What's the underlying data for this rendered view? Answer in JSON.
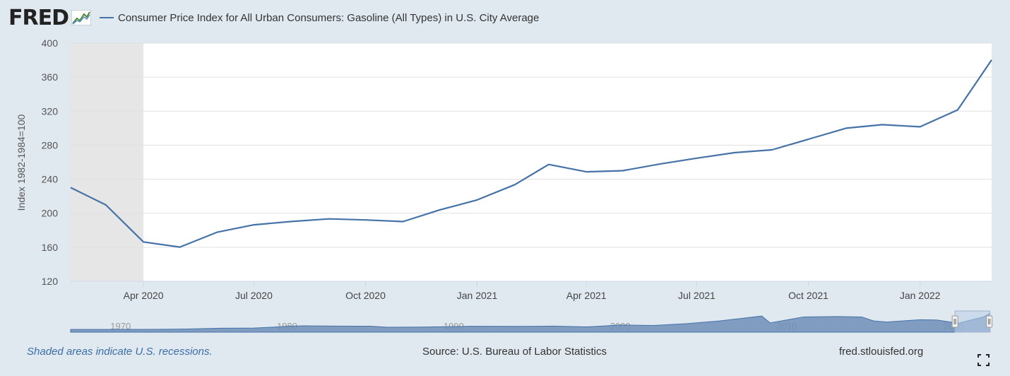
{
  "header": {
    "logo": "FRED",
    "series_label": "Consumer Price Index for All Urban Consumers: Gasoline (All Types) in U.S. City Average",
    "series_color": "#4572a7"
  },
  "chart_data": {
    "type": "line",
    "title": "",
    "xlabel": "",
    "ylabel": "Index 1982-1984=100",
    "ylim": [
      120,
      400
    ],
    "yticks": [
      120,
      160,
      200,
      240,
      280,
      320,
      360,
      400
    ],
    "xlim": [
      "2020-02-01",
      "2022-03-01"
    ],
    "xticks": [
      {
        "date": "2020-04-01",
        "label": "Apr 2020"
      },
      {
        "date": "2020-07-01",
        "label": "Jul 2020"
      },
      {
        "date": "2020-10-01",
        "label": "Oct 2020"
      },
      {
        "date": "2021-01-01",
        "label": "Jan 2021"
      },
      {
        "date": "2021-04-01",
        "label": "Apr 2021"
      },
      {
        "date": "2021-07-01",
        "label": "Jul 2021"
      },
      {
        "date": "2021-10-01",
        "label": "Oct 2021"
      },
      {
        "date": "2022-01-01",
        "label": "Jan 2022"
      }
    ],
    "grid": true,
    "recession_shading": {
      "start": "2020-02-01",
      "end": "2020-04-01",
      "color": "#e6e6e6"
    },
    "series": [
      {
        "color": "#4572a7",
        "points": [
          {
            "x": "2020-02-01",
            "y": 230.2
          },
          {
            "x": "2020-03-01",
            "y": 209.8
          },
          {
            "x": "2020-04-01",
            "y": 166.3
          },
          {
            "x": "2020-05-01",
            "y": 160.2
          },
          {
            "x": "2020-06-01",
            "y": 177.8
          },
          {
            "x": "2020-07-01",
            "y": 186.4
          },
          {
            "x": "2020-08-01",
            "y": 190.3
          },
          {
            "x": "2020-09-01",
            "y": 193.4
          },
          {
            "x": "2020-10-01",
            "y": 192.1
          },
          {
            "x": "2020-11-01",
            "y": 190.2
          },
          {
            "x": "2020-12-01",
            "y": 203.8
          },
          {
            "x": "2021-01-01",
            "y": 215.6
          },
          {
            "x": "2021-02-01",
            "y": 233.6
          },
          {
            "x": "2021-03-01",
            "y": 257.3
          },
          {
            "x": "2021-04-01",
            "y": 248.7
          },
          {
            "x": "2021-05-01",
            "y": 250.0
          },
          {
            "x": "2021-06-01",
            "y": 258.0
          },
          {
            "x": "2021-07-01",
            "y": 264.7
          },
          {
            "x": "2021-08-01",
            "y": 271.2
          },
          {
            "x": "2021-09-01",
            "y": 274.5
          },
          {
            "x": "2021-10-01",
            "y": 287.0
          },
          {
            "x": "2021-11-01",
            "y": 300.0
          },
          {
            "x": "2021-12-01",
            "y": 304.1
          },
          {
            "x": "2022-01-01",
            "y": 301.6
          },
          {
            "x": "2022-02-01",
            "y": 321.5
          },
          {
            "x": "2022-03-01",
            "y": 380.2
          }
        ]
      }
    ],
    "navigator": {
      "year_labels": [
        "1970",
        "1980",
        "1990",
        "2000",
        "2010",
        "2020"
      ],
      "range": [
        1967,
        2022.3
      ],
      "window": [
        2020.1,
        2022.2
      ],
      "overview_values": [
        {
          "x": 1967,
          "y": 30
        },
        {
          "x": 1972,
          "y": 31
        },
        {
          "x": 1974,
          "y": 39
        },
        {
          "x": 1976,
          "y": 55
        },
        {
          "x": 1978,
          "y": 60
        },
        {
          "x": 1979,
          "y": 75
        },
        {
          "x": 1980,
          "y": 98
        },
        {
          "x": 1981,
          "y": 108
        },
        {
          "x": 1983,
          "y": 101
        },
        {
          "x": 1985,
          "y": 100
        },
        {
          "x": 1986,
          "y": 77
        },
        {
          "x": 1988,
          "y": 81
        },
        {
          "x": 1990,
          "y": 90
        },
        {
          "x": 1991,
          "y": 98
        },
        {
          "x": 1994,
          "y": 95
        },
        {
          "x": 1996,
          "y": 102
        },
        {
          "x": 1998,
          "y": 85
        },
        {
          "x": 2000,
          "y": 125
        },
        {
          "x": 2002,
          "y": 115
        },
        {
          "x": 2004,
          "y": 155
        },
        {
          "x": 2006,
          "y": 215
        },
        {
          "x": 2008.5,
          "y": 320
        },
        {
          "x": 2009,
          "y": 170
        },
        {
          "x": 2011,
          "y": 300
        },
        {
          "x": 2013,
          "y": 310
        },
        {
          "x": 2014.5,
          "y": 300
        },
        {
          "x": 2015.2,
          "y": 215
        },
        {
          "x": 2016,
          "y": 190
        },
        {
          "x": 2018,
          "y": 240
        },
        {
          "x": 2019,
          "y": 235
        },
        {
          "x": 2020.3,
          "y": 165
        },
        {
          "x": 2021,
          "y": 230
        },
        {
          "x": 2021.8,
          "y": 300
        },
        {
          "x": 2022.2,
          "y": 380
        }
      ]
    }
  },
  "footer": {
    "recession_note": "Shaded areas indicate U.S. recessions.",
    "source": "Source: U.S. Bureau of Labor Statistics",
    "site": "fred.stlouisfed.org"
  }
}
